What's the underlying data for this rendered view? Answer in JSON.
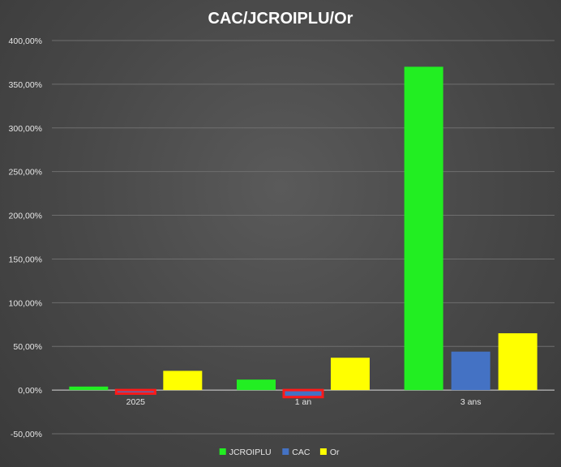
{
  "chart_data": {
    "type": "bar",
    "title": "CAC/JCROIPLU/Or",
    "categories": [
      "2025",
      "1 an",
      "3 ans"
    ],
    "series": [
      {
        "name": "JCROIPLU",
        "color": "#22ee22",
        "values": [
          4,
          12,
          370
        ]
      },
      {
        "name": "CAC",
        "color": "#4472c4",
        "values": [
          -4,
          -8,
          44
        ]
      },
      {
        "name": "Or",
        "color": "#ffff00",
        "values": [
          22,
          37,
          65
        ]
      }
    ],
    "ylim": [
      -50,
      400
    ],
    "yticks": [
      -50,
      0,
      50,
      100,
      150,
      200,
      250,
      300,
      350,
      400
    ],
    "ytick_labels": [
      "-50,00%",
      "0,00%",
      "50,00%",
      "100,00%",
      "150,00%",
      "200,00%",
      "250,00%",
      "300,00%",
      "350,00%",
      "400,00%"
    ],
    "grid": true,
    "legend_position": "bottom",
    "highlight_color": "#ff1a1a",
    "highlighted": [
      {
        "series": 1,
        "category": 0
      },
      {
        "series": 1,
        "category": 1
      }
    ]
  }
}
